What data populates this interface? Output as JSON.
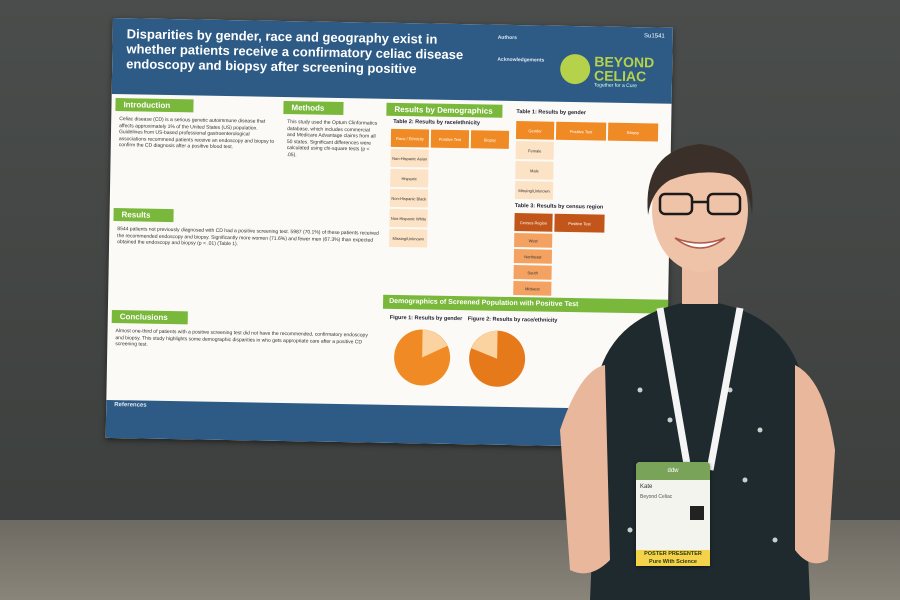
{
  "poster": {
    "title": "Disparities by gender, race and geography exist in whether patients receive a confirmatory celiac disease endoscopy and biopsy after screening positive",
    "poster_id": "Su1541",
    "authors_heading": "Authors",
    "acknowledgements_heading": "Acknowledgements",
    "brand": {
      "name_line1": "BEYOND",
      "name_line2": "CELIAC",
      "tagline": "Together for a Cure"
    },
    "sections": {
      "introduction": "Introduction",
      "methods": "Methods",
      "results_by_demographics": "Results by Demographics",
      "results": "Results",
      "conclusions": "Conclusions",
      "demographics_band": "Demographics of Screened Population with Positive Test",
      "references": "References"
    },
    "introduction_text": "Celiac disease (CD) is a serious genetic autoimmune disease that affects approximately 1% of the United States (US) population. Guidelines from US-based professional gastroenterological associations recommend patients receive an endoscopy and biopsy to confirm the CD diagnosis after a positive blood test.",
    "methods_text": "This study used the Optum Clinformatics database, which includes commercial and Medicare Advantage claims from all 50 states. Significant differences were calculated using chi-square tests (p < .05).",
    "results_text": "8544 patients not previously diagnosed with CD had a positive screening test. 5987 (70.1%) of these patients received the recommended endoscopy and biopsy. Significantly more women (71.6%) and fewer men (67.3%) than expected obtained the endoscopy and biopsy (p < .01) (Table 1).",
    "conclusions_text": "Almost one-third of patients with a positive screening test did not have the recommended, confirmatory endoscopy and biopsy. This study highlights some demographic disparities in who gets appropriate care after a positive CD screening test.",
    "table2_title": "Table 2: Results by race/ethnicity",
    "table1_title": "Table 1: Results by gender",
    "table3_title": "Table 3: Results by census region",
    "table2_rows": [
      "Non-Hispanic Asian",
      "Hispanic",
      "Non-Hispanic Black",
      "Non-Hispanic White",
      "Missing/Unknown"
    ],
    "table1_rows": [
      "Female",
      "Male",
      "Missing/Unknown"
    ],
    "table3_rows": [
      "West",
      "Northeast",
      "South",
      "Midwest"
    ],
    "fig1_title": "Figure 1: Results by gender",
    "fig2_title": "Figure 2: Results by race/ethnicity"
  },
  "badge": {
    "header": "ddw",
    "name": "Kate",
    "organization": "Beyond Celiac",
    "footer_line1": "POSTER PRESENTER",
    "footer_line2": "Pure With Science"
  },
  "colors": {
    "poster_blue": "#2d5b86",
    "section_green": "#79b83a",
    "table_orange": "#f08a24",
    "brand_lime": "#b6d24a"
  }
}
